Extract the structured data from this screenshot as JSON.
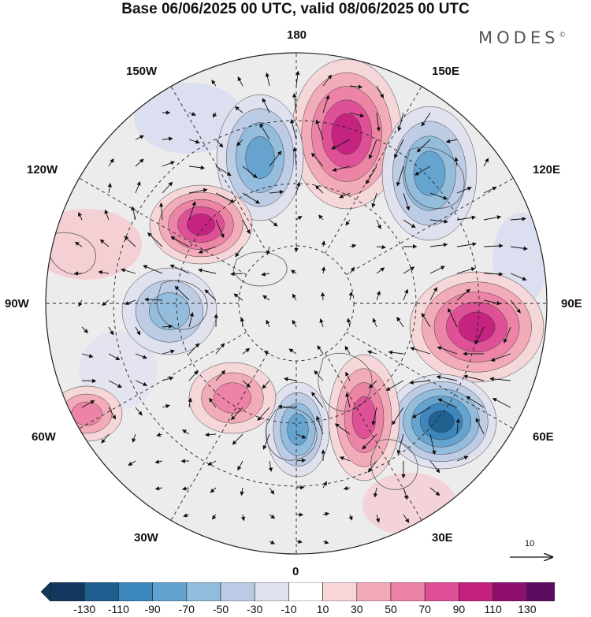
{
  "title": "Base 06/06/2025 00 UTC, valid 08/06/2025 00 UTC",
  "brand": {
    "name": "MODES",
    "mark": "©"
  },
  "longitude_labels": {
    "top": "180",
    "top_left": "150W",
    "top_right": "150E",
    "upper_left": "120W",
    "upper_right": "120E",
    "left": "90W",
    "right": "90E",
    "lower_left": "60W",
    "lower_right": "60E",
    "bottom_left": "30W",
    "bottom_right": "30E",
    "bottom": "0"
  },
  "wind_scale_label": "10",
  "colorbar": {
    "tick_labels": [
      "-130",
      "-110",
      "-90",
      "-70",
      "-50",
      "-30",
      "-10",
      "10",
      "30",
      "50",
      "70",
      "90",
      "110",
      "130"
    ],
    "colors": [
      "#14375f",
      "#1f5f90",
      "#3b86bd",
      "#64a3cf",
      "#92bcdc",
      "#bccbe5",
      "#dfe1f0",
      "#ffffff",
      "#f7d6d8",
      "#f2aab8",
      "#ec82a6",
      "#df4f96",
      "#c4217f",
      "#8e0f6f",
      "#5a0d5e"
    ]
  },
  "anomaly_centers": [
    {
      "sign": "positive",
      "level": 90,
      "lon_side": "150E-180"
    },
    {
      "sign": "negative",
      "level": -70,
      "lon_side": "150W-180"
    },
    {
      "sign": "negative",
      "level": -70,
      "lon_side": "120E-150E"
    },
    {
      "sign": "positive",
      "level": 90,
      "lon_side": "120W"
    },
    {
      "sign": "positive",
      "level": 90,
      "lon_side": "90E"
    },
    {
      "sign": "negative",
      "level": -110,
      "lon_side": "60E"
    },
    {
      "sign": "negative",
      "level": -70,
      "lon_side": "0-30E"
    },
    {
      "sign": "positive",
      "level": 70,
      "lon_side": "30E"
    },
    {
      "sign": "positive",
      "level": 50,
      "lon_side": "30W-60W"
    },
    {
      "sign": "positive",
      "level": 50,
      "lon_side": "0-30W"
    },
    {
      "sign": "negative",
      "level": -50,
      "lon_side": "90W"
    }
  ]
}
